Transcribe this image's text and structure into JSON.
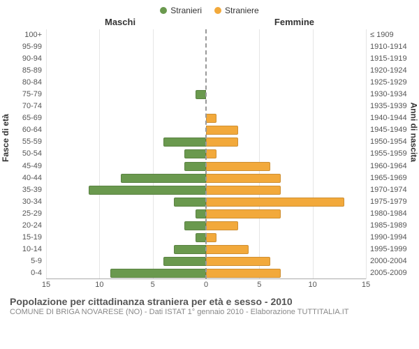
{
  "chart": {
    "type": "population-pyramid",
    "legend": [
      {
        "label": "Stranieri",
        "color": "#6a994e"
      },
      {
        "label": "Straniere",
        "color": "#f2a93b"
      }
    ],
    "top_titles": {
      "left": "Maschi",
      "right": "Femmine"
    },
    "y_axis_left": "Fasce di età",
    "y_axis_right": "Anni di nascita",
    "x_max": 15,
    "x_ticks": [
      -15,
      -10,
      -5,
      0,
      5,
      10,
      15
    ],
    "bar_colors": {
      "male": "#6a994e",
      "female": "#f2a93b"
    },
    "background": "#ffffff",
    "grid_color": "#e5e5e5",
    "rows": [
      {
        "age": "100+",
        "birth": "≤ 1909",
        "m": 0,
        "f": 0
      },
      {
        "age": "95-99",
        "birth": "1910-1914",
        "m": 0,
        "f": 0
      },
      {
        "age": "90-94",
        "birth": "1915-1919",
        "m": 0,
        "f": 0
      },
      {
        "age": "85-89",
        "birth": "1920-1924",
        "m": 0,
        "f": 0
      },
      {
        "age": "80-84",
        "birth": "1925-1929",
        "m": 0,
        "f": 0
      },
      {
        "age": "75-79",
        "birth": "1930-1934",
        "m": 1,
        "f": 0
      },
      {
        "age": "70-74",
        "birth": "1935-1939",
        "m": 0,
        "f": 0
      },
      {
        "age": "65-69",
        "birth": "1940-1944",
        "m": 0,
        "f": 1
      },
      {
        "age": "60-64",
        "birth": "1945-1949",
        "m": 0,
        "f": 3
      },
      {
        "age": "55-59",
        "birth": "1950-1954",
        "m": 4,
        "f": 3
      },
      {
        "age": "50-54",
        "birth": "1955-1959",
        "m": 2,
        "f": 1
      },
      {
        "age": "45-49",
        "birth": "1960-1964",
        "m": 2,
        "f": 6
      },
      {
        "age": "40-44",
        "birth": "1965-1969",
        "m": 8,
        "f": 7
      },
      {
        "age": "35-39",
        "birth": "1970-1974",
        "m": 11,
        "f": 7
      },
      {
        "age": "30-34",
        "birth": "1975-1979",
        "m": 3,
        "f": 13
      },
      {
        "age": "25-29",
        "birth": "1980-1984",
        "m": 1,
        "f": 7
      },
      {
        "age": "20-24",
        "birth": "1985-1989",
        "m": 2,
        "f": 3
      },
      {
        "age": "15-19",
        "birth": "1990-1994",
        "m": 1,
        "f": 1
      },
      {
        "age": "10-14",
        "birth": "1995-1999",
        "m": 3,
        "f": 4
      },
      {
        "age": "5-9",
        "birth": "2000-2004",
        "m": 4,
        "f": 6
      },
      {
        "age": "0-4",
        "birth": "2005-2009",
        "m": 9,
        "f": 7
      }
    ]
  },
  "footer": {
    "title": "Popolazione per cittadinanza straniera per età e sesso - 2010",
    "subtitle": "COMUNE DI BRIGA NOVARESE (NO) - Dati ISTAT 1° gennaio 2010 - Elaborazione TUTTITALIA.IT"
  }
}
